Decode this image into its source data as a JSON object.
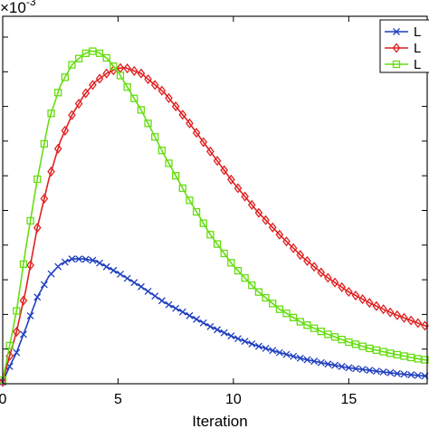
{
  "chart_data": {
    "type": "line",
    "title": "",
    "xlabel": "Iteration",
    "ylabel": "",
    "exponent_label": "×10",
    "exponent_power": "-3",
    "xlim": [
      0,
      18.4
    ],
    "ylim": [
      0,
      10.6
    ],
    "xticks": [
      0,
      5,
      10,
      15
    ],
    "xtick_labels": [
      "0",
      "5",
      "10",
      "15"
    ],
    "ytick_values": [
      0,
      1,
      2,
      3,
      4,
      5,
      6,
      7,
      8,
      9,
      10
    ],
    "legend_position": "top-right",
    "legend_labels": [
      "L",
      "L",
      "L"
    ],
    "series": [
      {
        "name": "",
        "color": "#1f3fbf",
        "marker": "x",
        "x": [
          0,
          0.3,
          0.6,
          1.0,
          1.5,
          2.0,
          2.5,
          3.0,
          3.5,
          4.0,
          5.0,
          6.0,
          7.0,
          8.0,
          9.0,
          10.0,
          11.0,
          12.0,
          13.0,
          14.0,
          15.0,
          16.0,
          17.0,
          18.0,
          18.4
        ],
        "y": [
          0.05,
          0.5,
          0.9,
          1.6,
          2.5,
          3.1,
          3.45,
          3.6,
          3.6,
          3.55,
          3.2,
          2.8,
          2.35,
          2.0,
          1.65,
          1.35,
          1.1,
          0.9,
          0.72,
          0.58,
          0.46,
          0.38,
          0.3,
          0.24,
          0.22
        ]
      },
      {
        "name": "",
        "color": "#e02020",
        "marker": "diamond",
        "x": [
          0,
          0.3,
          0.6,
          1.0,
          1.5,
          2.0,
          2.5,
          3.0,
          3.5,
          4.0,
          4.5,
          5.0,
          5.3,
          6.0,
          7.0,
          8.0,
          9.0,
          10.0,
          11.0,
          12.0,
          13.0,
          14.0,
          15.0,
          16.0,
          17.0,
          18.0,
          18.4
        ],
        "y": [
          0.05,
          0.8,
          1.5,
          2.7,
          4.5,
          5.9,
          7.0,
          7.75,
          8.3,
          8.7,
          8.95,
          9.1,
          9.12,
          8.95,
          8.4,
          7.6,
          6.7,
          5.8,
          5.0,
          4.3,
          3.65,
          3.1,
          2.65,
          2.3,
          2.0,
          1.75,
          1.65
        ]
      },
      {
        "name": "",
        "color": "#66dd10",
        "marker": "square",
        "x": [
          0,
          0.3,
          0.6,
          1.0,
          1.5,
          2.0,
          2.5,
          3.0,
          3.5,
          3.8,
          4.1,
          4.5,
          5.0,
          6.0,
          7.0,
          8.0,
          9.0,
          10.0,
          11.0,
          12.0,
          13.0,
          14.0,
          15.0,
          16.0,
          17.0,
          18.0,
          18.4
        ],
        "y": [
          0.1,
          1.1,
          2.1,
          3.9,
          5.9,
          7.6,
          8.6,
          9.2,
          9.5,
          9.6,
          9.58,
          9.4,
          9.0,
          7.9,
          6.6,
          5.4,
          4.3,
          3.4,
          2.7,
          2.15,
          1.75,
          1.45,
          1.2,
          1.0,
          0.85,
          0.72,
          0.68
        ]
      }
    ]
  }
}
